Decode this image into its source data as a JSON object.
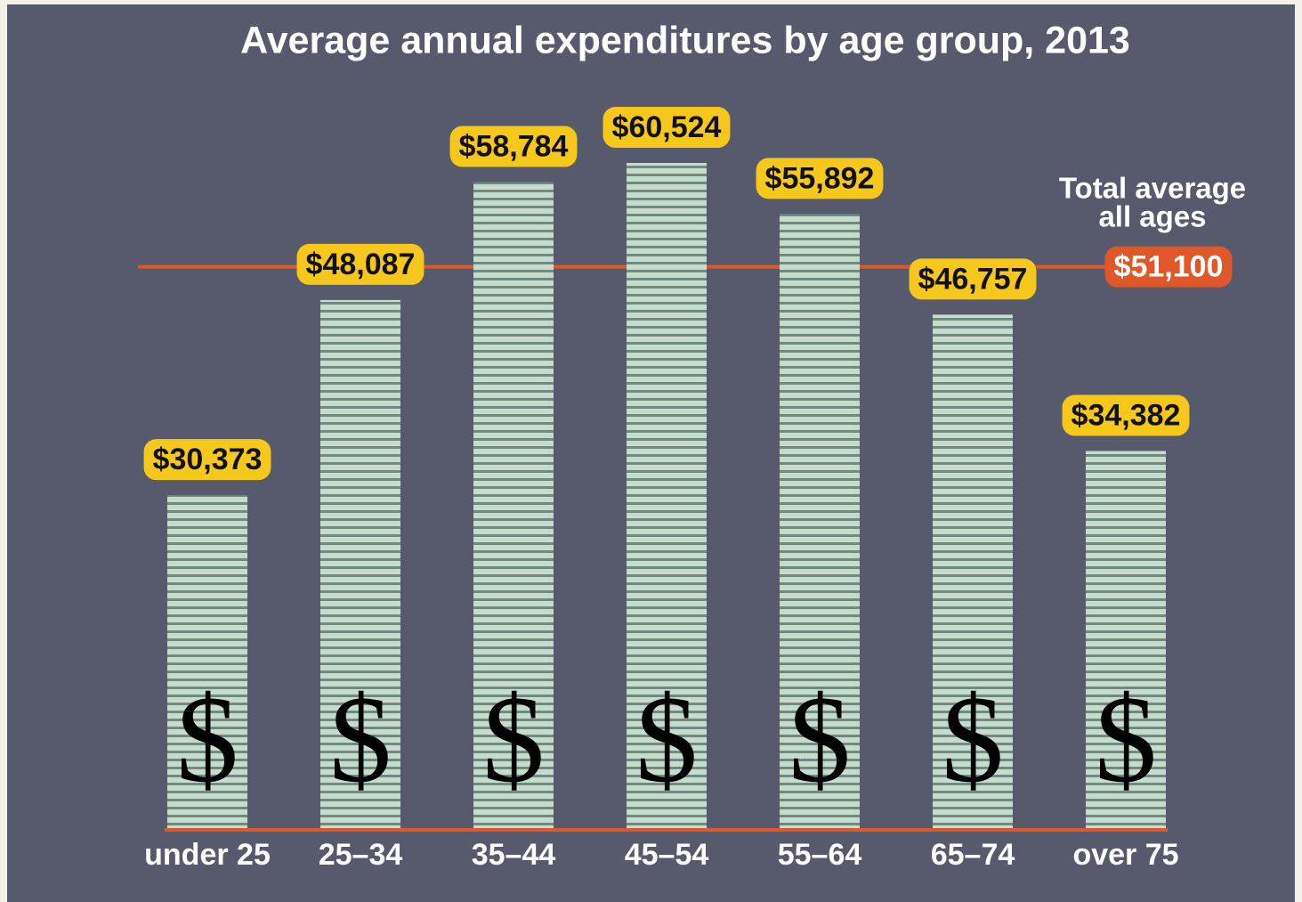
{
  "chart_data": {
    "type": "bar",
    "title": "Average annual expenditures by age group, 2013",
    "categories": [
      "under 25",
      "25–34",
      "35–44",
      "45–54",
      "55–64",
      "65–74",
      "over 75"
    ],
    "values": [
      30373,
      48087,
      58784,
      60524,
      55892,
      46757,
      34382
    ],
    "value_labels": [
      "$30,373",
      "$48,087",
      "$58,784",
      "$60,524",
      "$55,892",
      "$46,757",
      "$34,382"
    ],
    "bar_symbol": "$",
    "color": "#c8dccd",
    "ylim": [
      0,
      70000
    ],
    "reference": {
      "value": 51100,
      "label": "$51,100",
      "annotation": [
        "Total average",
        "all ages"
      ],
      "color": "#e0572a"
    }
  }
}
